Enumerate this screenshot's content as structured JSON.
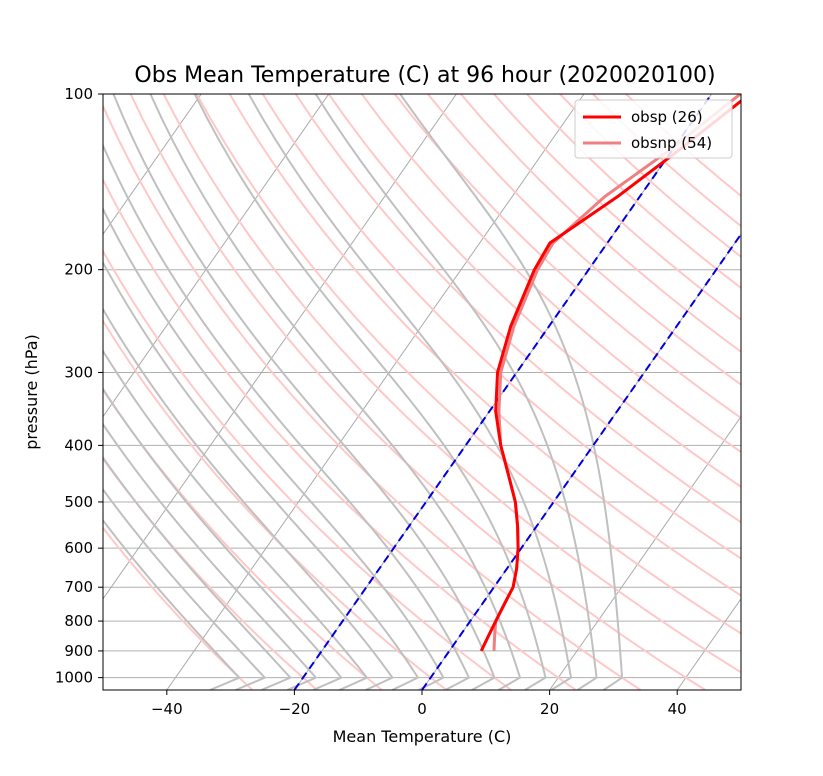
{
  "chart_data": {
    "type": "line",
    "title": "Obs Mean Temperature (C) at 96 hour (2020020100)",
    "xlabel": "Mean Temperature (C)",
    "ylabel": "pressure (hPa)",
    "xlim": [
      -50,
      50
    ],
    "ylim": [
      1050,
      100
    ],
    "y_scale": "log",
    "grid": true,
    "legend_position": "top-right",
    "x_ticks": [
      -40,
      -20,
      0,
      20,
      40
    ],
    "y_ticks": [
      100,
      200,
      300,
      400,
      500,
      600,
      700,
      800,
      900,
      1000
    ],
    "series": [
      {
        "name": "obsp (26)",
        "color": "#ff0000",
        "pressure": [
          900,
          850,
          800,
          750,
          700,
          650,
          600,
          550,
          500,
          450,
          400,
          350,
          300,
          250,
          200,
          180,
          150,
          125,
          100
        ],
        "temperature": [
          5.0,
          4.5,
          4.0,
          3.5,
          3.0,
          1.5,
          -0.5,
          -3.0,
          -6.0,
          -10.0,
          -14.5,
          -19.0,
          -23.0,
          -26.0,
          -28.5,
          -29.0,
          -23.5,
          -19.0,
          -14.0
        ]
      },
      {
        "name": "obsnp (54)",
        "color": "#f08080",
        "pressure": [
          900,
          850,
          800,
          750,
          700,
          650,
          600,
          550,
          500,
          450,
          400,
          350,
          300,
          250,
          200,
          180,
          150,
          125,
          100
        ],
        "temperature": [
          7.0,
          5.5,
          4.0,
          3.5,
          3.0,
          1.5,
          -0.5,
          -3.0,
          -6.0,
          -10.0,
          -14.5,
          -18.5,
          -22.5,
          -25.5,
          -28.0,
          -28.5,
          -25.5,
          -20.5,
          -15.5
        ]
      }
    ],
    "background_lines": {
      "isotherms_color": "#aaaaaa",
      "dry_adiabats_color": "#ffc8c8",
      "moist_adiabats_color": "#c0c0c0",
      "mixing_ratio_color": "#0000dd"
    }
  }
}
